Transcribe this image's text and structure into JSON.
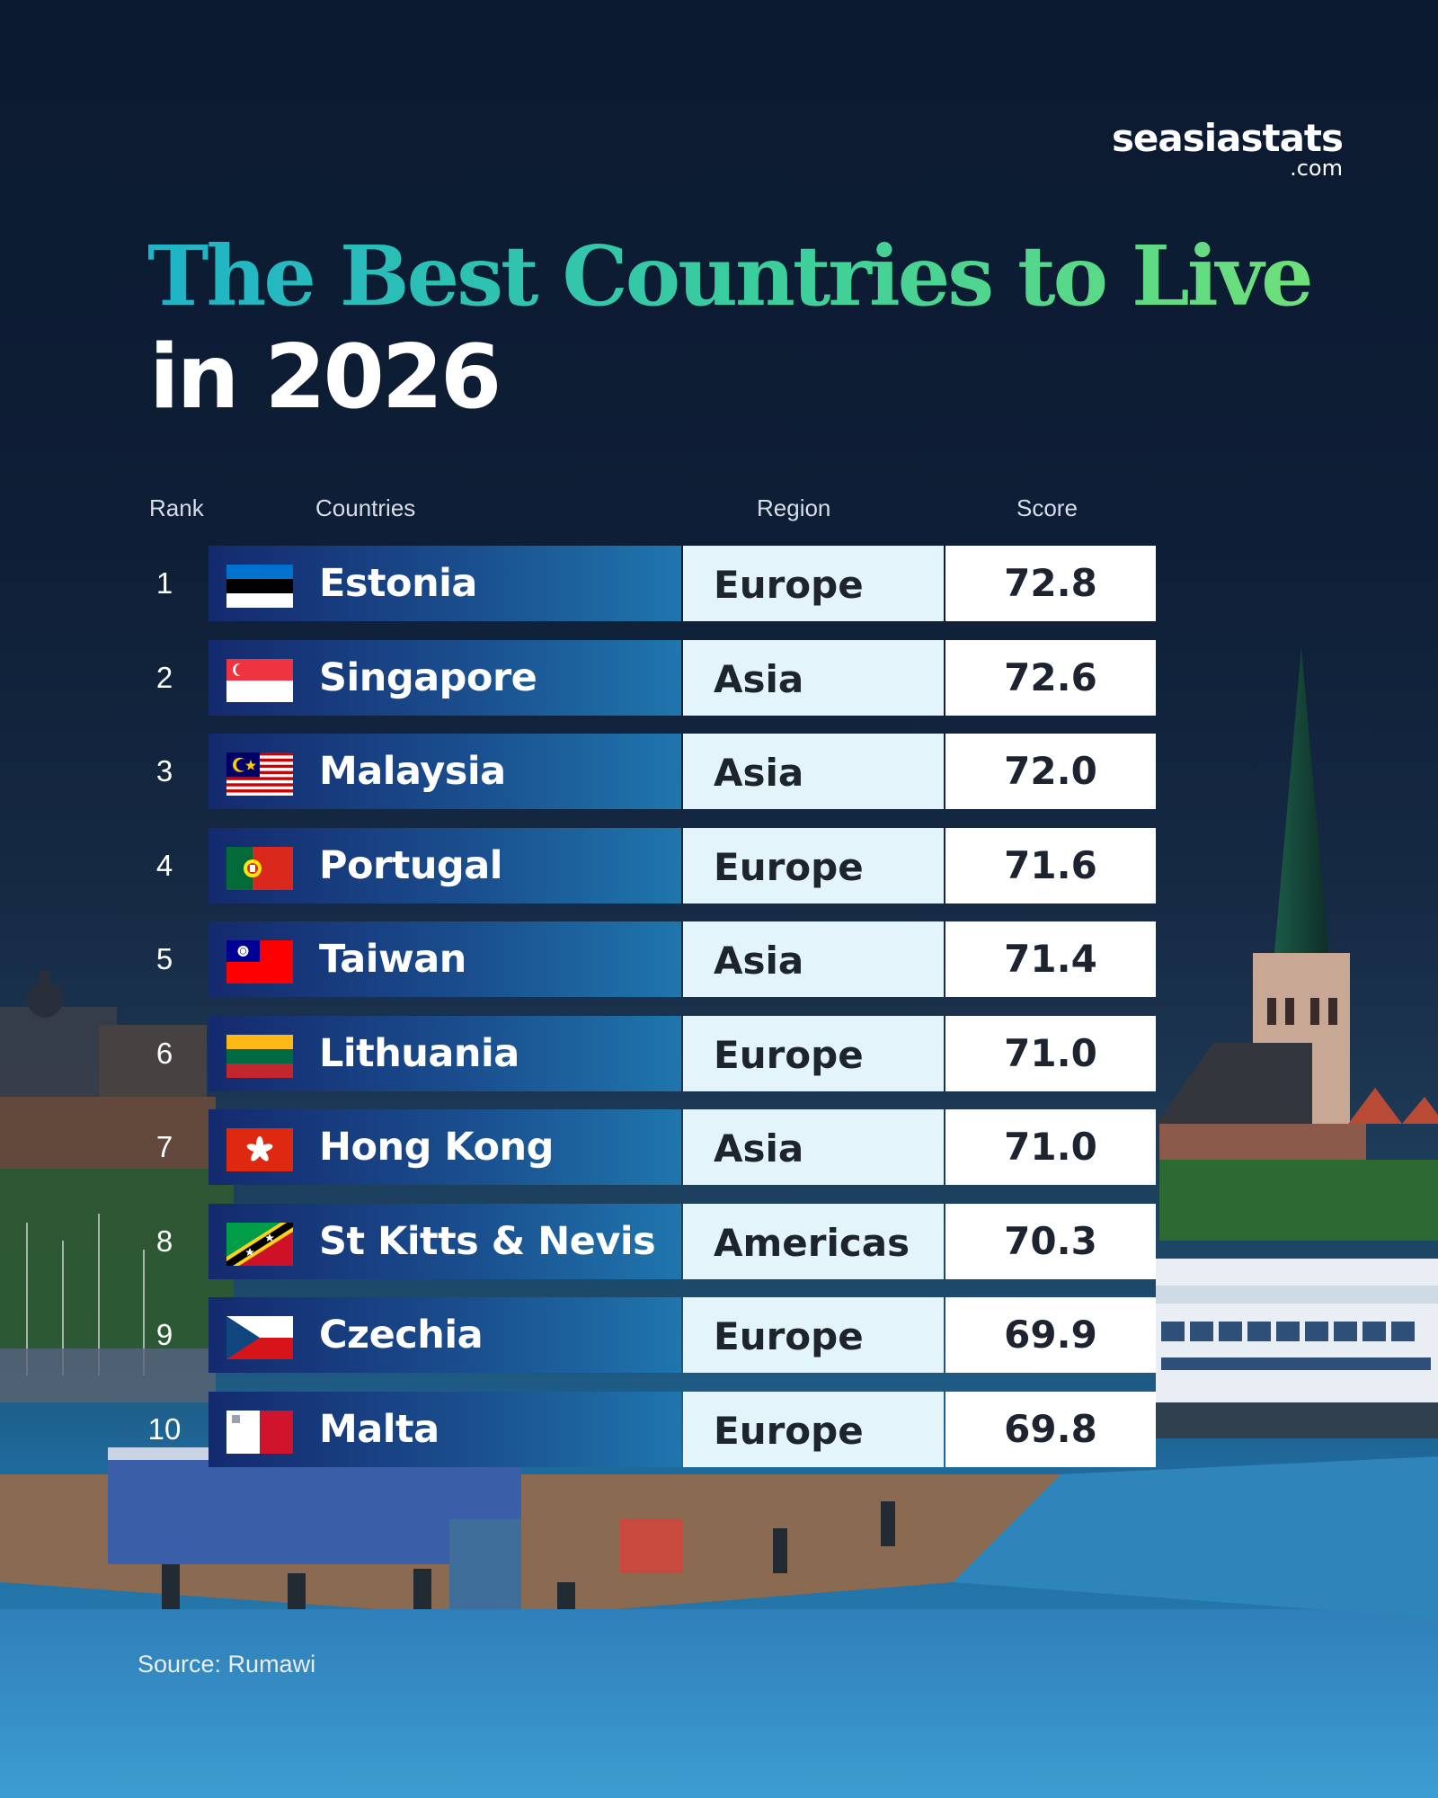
{
  "brand": {
    "name": "seasiastats",
    "tld": ".com"
  },
  "title": {
    "line1": "The Best Countries to Live",
    "line2": "in 2026"
  },
  "headers": {
    "rank": "Rank",
    "countries": "Countries",
    "region": "Region",
    "score": "Score"
  },
  "source": "Source: Rumawi",
  "colors": {
    "title_gradient_start": "#1fb3c9",
    "title_gradient_end": "#6fe07a",
    "country_cell_start": "#142a6e",
    "country_cell_end": "#1f76ad",
    "region_cell": "#e3f4fa",
    "score_cell": "#ffffff"
  },
  "chart_data": {
    "type": "table",
    "title": "The Best Countries to Live in 2026",
    "columns": [
      "Rank",
      "Countries",
      "Region",
      "Score"
    ],
    "rows": [
      {
        "rank": "1",
        "country": "Estonia",
        "flag": "estonia-flag-icon",
        "region": "Europe",
        "score": "72.8"
      },
      {
        "rank": "2",
        "country": "Singapore",
        "flag": "singapore-flag-icon",
        "region": "Asia",
        "score": "72.6"
      },
      {
        "rank": "3",
        "country": "Malaysia",
        "flag": "malaysia-flag-icon",
        "region": "Asia",
        "score": "72.0"
      },
      {
        "rank": "4",
        "country": "Portugal",
        "flag": "portugal-flag-icon",
        "region": "Europe",
        "score": "71.6"
      },
      {
        "rank": "5",
        "country": "Taiwan",
        "flag": "taiwan-flag-icon",
        "region": "Asia",
        "score": "71.4"
      },
      {
        "rank": "6",
        "country": "Lithuania",
        "flag": "lithuania-flag-icon",
        "region": "Europe",
        "score": "71.0"
      },
      {
        "rank": "7",
        "country": "Hong Kong",
        "flag": "hong-kong-flag-icon",
        "region": "Asia",
        "score": "71.0"
      },
      {
        "rank": "8",
        "country": "St Kitts & Nevis",
        "flag": "st-kitts-nevis-flag-icon",
        "region": "Americas",
        "score": "70.3"
      },
      {
        "rank": "9",
        "country": "Czechia",
        "flag": "czechia-flag-icon",
        "region": "Europe",
        "score": "69.9"
      },
      {
        "rank": "10",
        "country": "Malta",
        "flag": "malta-flag-icon",
        "region": "Europe",
        "score": "69.8"
      }
    ]
  }
}
